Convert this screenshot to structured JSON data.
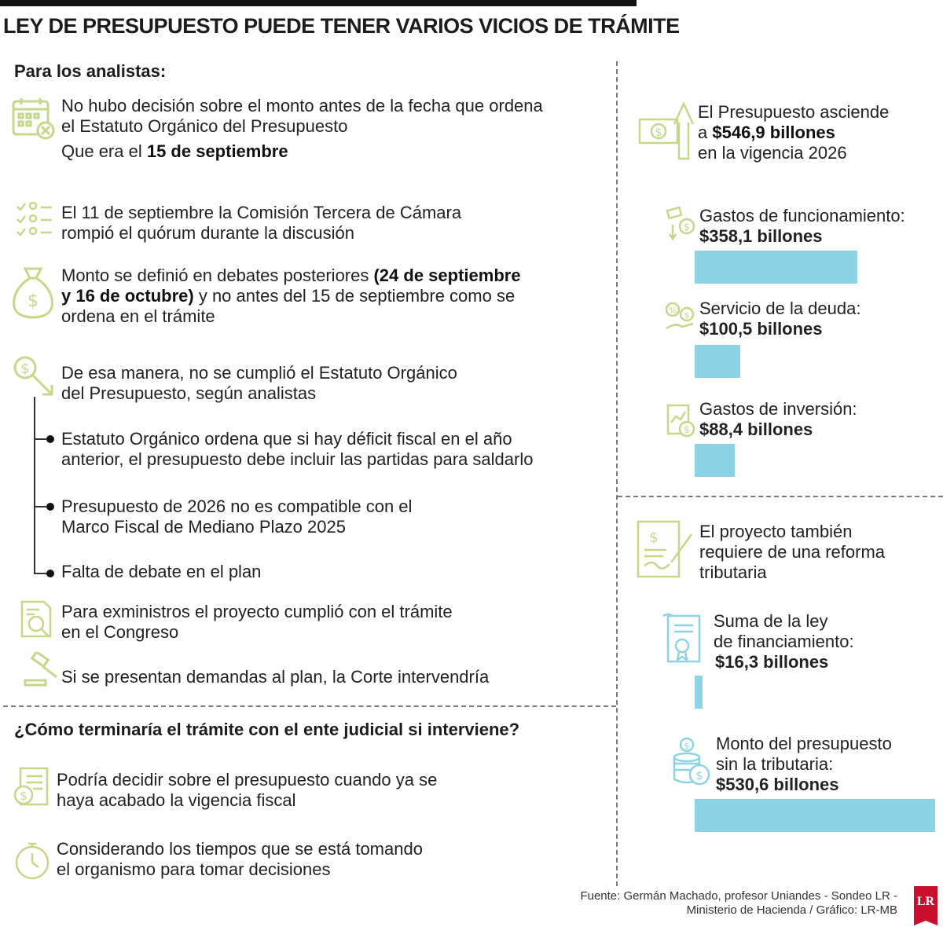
{
  "title": "LEY DE PRESUPUESTO PUEDE TENER VARIOS VICIOS DE TRÁMITE",
  "left": {
    "heading": "Para los analistas:",
    "item1": {
      "line1": "No hubo decisión sobre el monto antes de la fecha que ordena",
      "line2": "el Estatuto Orgánico del Presupuesto",
      "line3_pre": "Que era el ",
      "line3_bold": "15 de septiembre"
    },
    "item2": {
      "line1": "El 11 de septiembre la Comisión Tercera de Cámara",
      "line2": "rompió el quórum durante la discusión"
    },
    "item3": {
      "line1_pre": "Monto se definió en debates posteriores ",
      "line1_bold": "(24 de septiembre",
      "line2_bold": "y 16 de octubre)",
      "line2_post": " y no antes del 15 de septiembre como se",
      "line3": "ordena en el trámite"
    },
    "item4": {
      "line1": "De esa manera, no se cumplió el Estatuto Orgánico",
      "line2": "del Presupuesto, según analistas"
    },
    "sub1": {
      "line1": "Estatuto Orgánico ordena que si hay déficit fiscal en el año",
      "line2": "anterior, el presupuesto debe incluir las partidas para saldarlo"
    },
    "sub2": {
      "line1": "Presupuesto de 2026 no es compatible con el",
      "line2": "Marco Fiscal de Mediano Plazo 2025"
    },
    "sub3": {
      "line1": "Falta de debate en el plan"
    },
    "item5": {
      "line1": "Para exministros el proyecto cumplió con el trámite",
      "line2": "en el Congreso"
    },
    "item6": {
      "line1": "Si se presentan demandas al plan, la Corte intervendría"
    },
    "heading2": "¿Cómo terminaría el trámite con el ente judicial si interviene?",
    "item7": {
      "line1": "Podría decidir sobre el presupuesto cuando ya se",
      "line2": "haya acabado la vigencia fiscal"
    },
    "item8": {
      "line1": "Considerando los tiempos que se está tomando",
      "line2": "el organismo para tomar decisiones"
    }
  },
  "right": {
    "total": {
      "line1": "El Presupuesto asciende",
      "line2_pre": "a ",
      "line2_bold": "$546,9 billones",
      "line3": "en la vigencia 2026"
    },
    "reform": {
      "line1": "El proyecto también",
      "line2": "requiere de una reforma",
      "line3": "tributaria"
    }
  },
  "chart_data": [
    {
      "type": "bar",
      "categories": [
        "Gastos de funcionamiento:",
        "Servicio de la deuda:",
        "Gastos de inversión:"
      ],
      "labels": [
        "$358,1 billones",
        "$100,5 billones",
        "$88,4 billones"
      ],
      "values": [
        358.1,
        100.5,
        88.4
      ],
      "unit": "billones"
    },
    {
      "type": "bar",
      "categories": [
        "Suma de la ley de financiamiento:",
        "Monto del presupuesto sin la tributaria:"
      ],
      "category_lines": [
        [
          "Suma de la ley",
          "de financiamiento:"
        ],
        [
          "Monto del presupuesto",
          "sin la tributaria:"
        ]
      ],
      "labels": [
        "$16,3 billones",
        "$530,6 billones"
      ],
      "values": [
        16.3,
        530.6
      ],
      "unit": "billones"
    }
  ],
  "colors": {
    "bar": "#8dd3e6",
    "icon": "#c5d88a",
    "logo": "#c8102e"
  },
  "icons": [
    "calendar-cancel-icon",
    "checklist-people-icon",
    "money-bag-icon",
    "coin-arrow-icon",
    "document-search-icon",
    "gavel-icon",
    "invoice-icon",
    "stopwatch-icon",
    "banknote-arrow-icon",
    "coins-hand-icon",
    "percent-hand-icon",
    "report-dollar-icon",
    "contract-sign-icon",
    "certificate-scroll-icon",
    "coin-stack-icon"
  ],
  "source": {
    "line1": "Fuente: Germán Machado, profesor Uniandes - Sondeo LR -",
    "line2": "Ministerio de Hacienda  / Gráfico: LR-MB"
  },
  "logo": "LR"
}
